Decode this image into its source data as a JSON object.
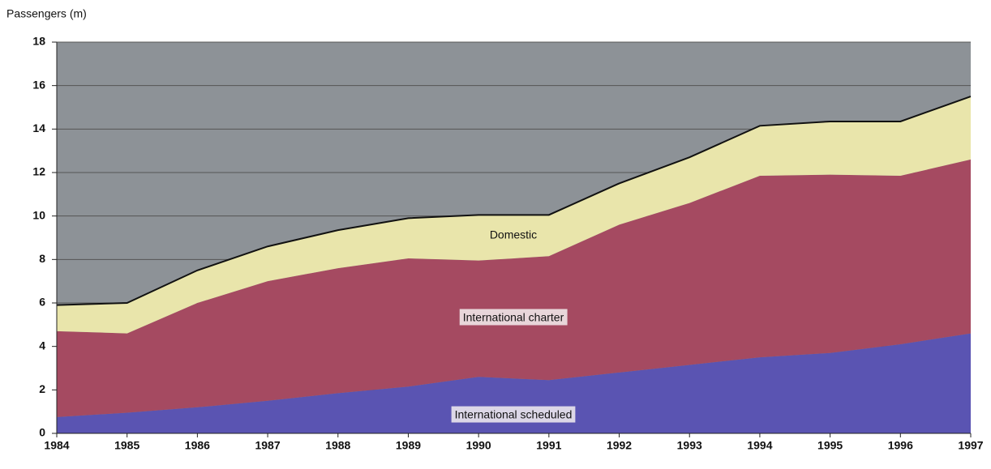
{
  "chart_data": {
    "type": "stacked_area",
    "y_axis_label": "Passengers (m)",
    "categories": [
      "1984",
      "1985",
      "1986",
      "1987",
      "1988",
      "1989",
      "1990",
      "1991",
      "1992",
      "1993",
      "1994",
      "1995",
      "1996",
      "1997"
    ],
    "series": [
      {
        "name": "International scheduled",
        "color": "#5a54b2",
        "values": [
          0.75,
          0.95,
          1.2,
          1.5,
          1.85,
          2.15,
          2.6,
          2.45,
          2.8,
          3.15,
          3.5,
          3.7,
          4.1,
          4.6
        ]
      },
      {
        "name": "International charter",
        "color": "#a54a61",
        "values": [
          3.95,
          3.65,
          4.8,
          5.5,
          5.75,
          5.9,
          5.35,
          5.7,
          6.8,
          7.45,
          8.35,
          8.2,
          7.75,
          8.0
        ]
      },
      {
        "name": "Domestic",
        "color": "#e9e5ab",
        "values": [
          1.2,
          1.4,
          1.5,
          1.6,
          1.75,
          1.85,
          2.1,
          1.9,
          1.9,
          2.1,
          2.3,
          2.45,
          2.5,
          2.9
        ]
      }
    ],
    "ylim": [
      0,
      18
    ],
    "yticks": [
      0,
      2,
      4,
      6,
      8,
      10,
      12,
      14,
      16,
      18
    ],
    "grid": true,
    "background": "#8d9297"
  }
}
